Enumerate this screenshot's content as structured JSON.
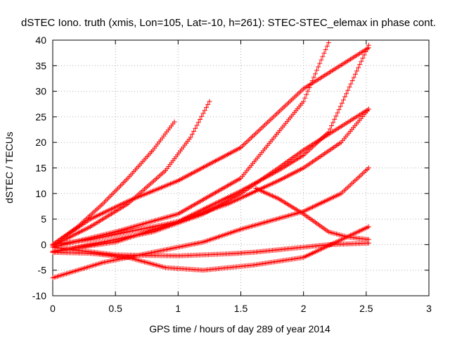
{
  "chart_data": {
    "type": "scatter",
    "title": "dSTEC Iono. truth (xmis, Lon=105, Lat=-10, h=261): STEC-STEC_elemax in phase cont.",
    "xlabel": "GPS time / hours of day 289 of year 2014",
    "ylabel": "dSTEC  / TECUs",
    "xlim": [
      0,
      3
    ],
    "ylim": [
      -10,
      40
    ],
    "xticks": [
      0,
      0.5,
      1,
      1.5,
      2,
      2.5,
      3
    ],
    "xtick_labels": [
      "0",
      "0.5",
      "1",
      "1.5",
      "2",
      "2.5",
      "3"
    ],
    "yticks": [
      -10,
      -5,
      0,
      5,
      10,
      15,
      20,
      25,
      30,
      35,
      40
    ],
    "ytick_labels": [
      "-10",
      "-5",
      "0",
      "5",
      "10",
      "15",
      "20",
      "25",
      "30",
      "35",
      "40"
    ],
    "grid": true,
    "marker": "+",
    "color": "#ff0000",
    "series": [
      {
        "x": [
          0,
          0.2,
          0.4,
          0.6,
          0.8,
          0.97
        ],
        "values": [
          0,
          3.5,
          8,
          13,
          18.5,
          24
        ]
      },
      {
        "x": [
          0,
          0.3,
          0.6,
          0.9,
          1.1,
          1.25
        ],
        "values": [
          -0.2,
          3.5,
          8,
          14.5,
          21,
          28
        ]
      },
      {
        "x": [
          0,
          0.5,
          1,
          1.5,
          2,
          2.2
        ],
        "values": [
          -0.5,
          2.5,
          6,
          13,
          28,
          39.5
        ]
      },
      {
        "x": [
          0,
          0.3,
          0.6,
          1,
          1.5,
          2,
          2.52
        ],
        "values": [
          0,
          5,
          8.5,
          12.5,
          19,
          30.5,
          38.5
        ]
      },
      {
        "x": [
          0,
          0.5,
          1,
          1.5,
          1.8,
          2,
          2.2,
          2.52
        ],
        "values": [
          -1.3,
          0.5,
          4.5,
          10.5,
          14.5,
          17.5,
          22,
          39
        ]
      },
      {
        "x": [
          0,
          0.4,
          0.8,
          1.2,
          1.5,
          1.8,
          2,
          2.52
        ],
        "values": [
          -1.5,
          0.5,
          2.5,
          6,
          10,
          15,
          18.5,
          26.5
        ]
      },
      {
        "x": [
          0,
          0.5,
          1,
          1.4,
          1.6,
          1.8,
          2,
          2.2,
          2.52
        ],
        "values": [
          -0.5,
          -2,
          -2.2,
          -1.8,
          -1.5,
          -1,
          -0.5,
          0,
          0.3
        ]
      },
      {
        "x": [
          0,
          0.4,
          0.8,
          1,
          1.2,
          1.5,
          2,
          2.3,
          2.52
        ],
        "values": [
          -6.5,
          -3.5,
          -1.5,
          -0.5,
          0.5,
          3,
          6.5,
          10,
          15
        ]
      },
      {
        "x": [
          0,
          0.3,
          0.6,
          0.9,
          1.2,
          1.6,
          2,
          2.52
        ],
        "values": [
          -1.5,
          -1.7,
          -2.5,
          -4.5,
          -5,
          -4,
          -2.5,
          3.5
        ]
      },
      {
        "x": [
          1.62,
          1.8,
          2,
          2.2,
          2.35,
          2.52
        ],
        "values": [
          11,
          9,
          6,
          2.5,
          1.5,
          1
        ]
      },
      {
        "x": [
          0,
          0.3,
          0.6,
          1,
          1.4,
          1.8,
          2,
          2.3,
          2.52
        ],
        "values": [
          0,
          1,
          2.5,
          4.5,
          8,
          12.5,
          15,
          20,
          26.5
        ]
      }
    ]
  }
}
